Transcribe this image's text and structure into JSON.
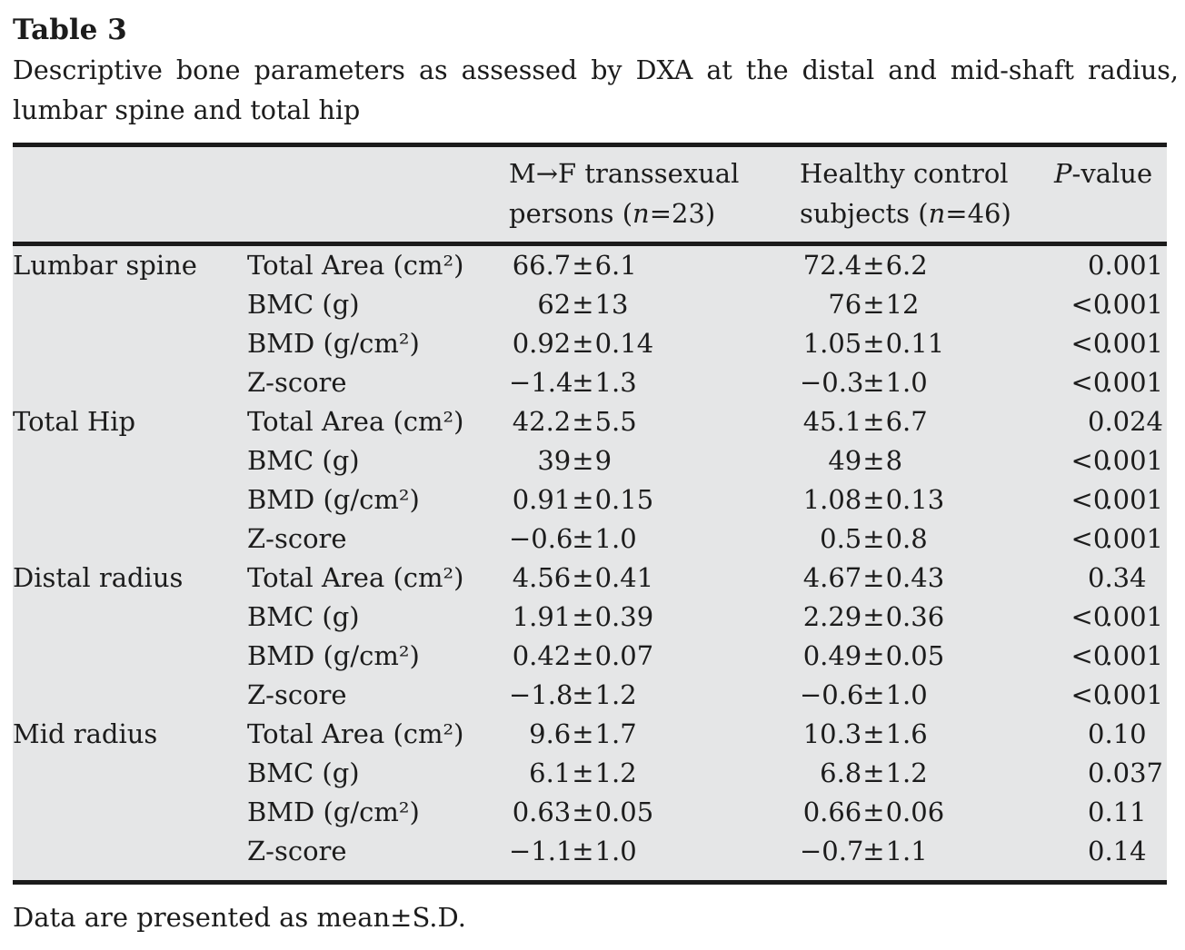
{
  "colors": {
    "table_bg": "#e5e6e7",
    "rule": "#1b1b1b",
    "text": "#1c1c1c",
    "page_bg": "#ffffff"
  },
  "table": {
    "label": "Table 3",
    "caption_line1": "Descriptive bone parameters as assessed by DXA at the distal and mid-shaft radius,",
    "caption_line2": "lumbar spine and total hip",
    "header": {
      "col3_line1": "M→F transsexual",
      "col3_line2_pre": "persons (",
      "col3_n": "n",
      "col3_line2_post": "=23)",
      "col4_line1": "Healthy control",
      "col4_line2_pre": "subjects (",
      "col4_n": "n",
      "col4_line2_post": "=46)",
      "p_italic": "P",
      "p_rest": "-value"
    },
    "rows": [
      {
        "group": "Lumbar spine",
        "param": "Total Area (cm²)",
        "mf": "66.7±6.1",
        "hc": "72.4±6.2",
        "p": "0.001"
      },
      {
        "group": "",
        "param": "BMC (g)",
        "mf": "62±13",
        "hc": "76±12",
        "p": "<0.001"
      },
      {
        "group": "",
        "param": "BMD (g/cm²)",
        "mf": "0.92±0.14",
        "hc": "1.05±0.11",
        "p": "<0.001"
      },
      {
        "group": "",
        "param": "Z-score",
        "mf": "−1.4±1.3",
        "hc": "−0.3±1.0",
        "p": "<0.001"
      },
      {
        "group": "Total Hip",
        "param": "Total Area (cm²)",
        "mf": "42.2±5.5",
        "hc": "45.1±6.7",
        "p": "0.024"
      },
      {
        "group": "",
        "param": "BMC (g)",
        "mf": "39±9",
        "hc": "49±8",
        "p": "<0.001"
      },
      {
        "group": "",
        "param": "BMD (g/cm²)",
        "mf": "0.91±0.15",
        "hc": "1.08±0.13",
        "p": "<0.001"
      },
      {
        "group": "",
        "param": "Z-score",
        "mf": "−0.6±1.0",
        "hc": "0.5±0.8",
        "p": "<0.001"
      },
      {
        "group": "Distal radius",
        "param": "Total Area (cm²)",
        "mf": "4.56±0.41",
        "hc": "4.67±0.43",
        "p": "0.34"
      },
      {
        "group": "",
        "param": "BMC (g)",
        "mf": "1.91±0.39",
        "hc": "2.29±0.36",
        "p": "<0.001"
      },
      {
        "group": "",
        "param": "BMD (g/cm²)",
        "mf": "0.42±0.07",
        "hc": "0.49±0.05",
        "p": "<0.001"
      },
      {
        "group": "",
        "param": "Z-score",
        "mf": "−1.8±1.2",
        "hc": "−0.6±1.0",
        "p": "<0.001"
      },
      {
        "group": "Mid radius",
        "param": "Total Area (cm²)",
        "mf": "9.6±1.7",
        "hc": "10.3±1.6",
        "p": "0.10"
      },
      {
        "group": "",
        "param": "BMC (g)",
        "mf": "6.1±1.2",
        "hc": "6.8±1.2",
        "p": "0.037"
      },
      {
        "group": "",
        "param": "BMD (g/cm²)",
        "mf": "0.63±0.05",
        "hc": "0.66±0.06",
        "p": "0.11"
      },
      {
        "group": "",
        "param": "Z-score",
        "mf": "−1.1±1.0",
        "hc": "−0.7±1.1",
        "p": "0.14"
      }
    ],
    "footnote": "Data are presented as mean±S.D."
  }
}
